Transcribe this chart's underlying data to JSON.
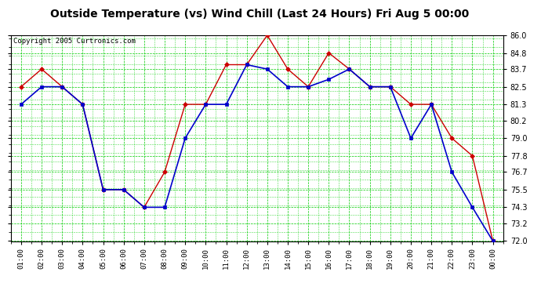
{
  "title": "Outside Temperature (vs) Wind Chill (Last 24 Hours) Fri Aug 5 00:00",
  "copyright": "Copyright 2005 Curtronics.com",
  "x_labels": [
    "01:00",
    "02:00",
    "03:00",
    "04:00",
    "05:00",
    "06:00",
    "07:00",
    "08:00",
    "09:00",
    "10:00",
    "11:00",
    "12:00",
    "13:00",
    "14:00",
    "15:00",
    "16:00",
    "17:00",
    "18:00",
    "19:00",
    "20:00",
    "21:00",
    "22:00",
    "23:00",
    "00:00"
  ],
  "outside_temp": [
    81.3,
    82.5,
    82.5,
    81.3,
    75.5,
    75.5,
    74.3,
    74.3,
    79.0,
    81.3,
    81.3,
    84.0,
    83.7,
    82.5,
    82.5,
    83.0,
    83.7,
    82.5,
    82.5,
    79.0,
    81.3,
    76.7,
    74.3,
    72.0
  ],
  "wind_chill": [
    82.5,
    83.7,
    82.5,
    81.3,
    75.5,
    75.5,
    74.3,
    76.7,
    81.3,
    81.3,
    84.0,
    84.0,
    86.0,
    83.7,
    82.5,
    84.8,
    83.7,
    82.5,
    82.5,
    81.3,
    81.3,
    79.0,
    77.8,
    72.0
  ],
  "ylim": [
    72.0,
    86.0
  ],
  "yticks": [
    72.0,
    73.2,
    74.3,
    75.5,
    76.7,
    77.8,
    79.0,
    80.2,
    81.3,
    82.5,
    83.7,
    84.8,
    86.0
  ],
  "bg_color": "#ffffff",
  "plot_bg_color": "#ffffff",
  "grid_color": "#00cc00",
  "line_outside_color": "#0000cc",
  "line_windchill_color": "#cc0000",
  "title_fontsize": 10,
  "copyright_fontsize": 6.5,
  "tick_fontsize": 6.5,
  "ytick_fontsize": 7
}
